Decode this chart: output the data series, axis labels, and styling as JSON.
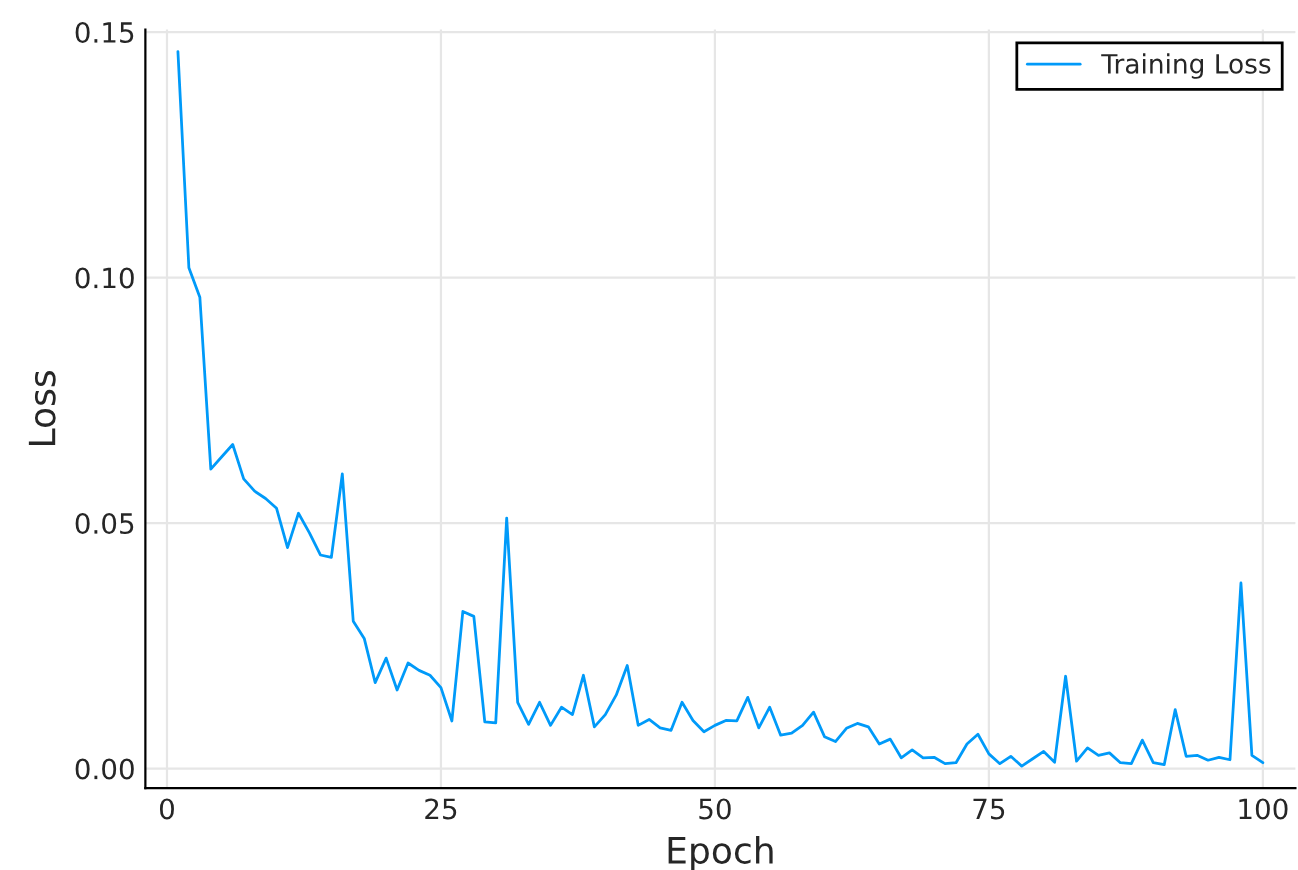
{
  "chart_data": {
    "type": "line",
    "xlabel": "Epoch",
    "ylabel": "Loss",
    "x": [
      1,
      2,
      3,
      4,
      5,
      6,
      7,
      8,
      9,
      10,
      11,
      12,
      13,
      14,
      15,
      16,
      17,
      18,
      19,
      20,
      21,
      22,
      23,
      24,
      25,
      26,
      27,
      28,
      29,
      30,
      31,
      32,
      33,
      34,
      35,
      36,
      37,
      38,
      39,
      40,
      41,
      42,
      43,
      44,
      45,
      46,
      47,
      48,
      49,
      50,
      51,
      52,
      53,
      54,
      55,
      56,
      57,
      58,
      59,
      60,
      61,
      62,
      63,
      64,
      65,
      66,
      67,
      68,
      69,
      70,
      71,
      72,
      73,
      74,
      75,
      76,
      77,
      78,
      79,
      80,
      81,
      82,
      83,
      84,
      85,
      86,
      87,
      88,
      89,
      90,
      91,
      92,
      93,
      94,
      95,
      96,
      97,
      98,
      99,
      100
    ],
    "series": [
      {
        "name": "Training Loss",
        "color": "#009af9",
        "values": [
          0.146,
          0.102,
          0.096,
          0.061,
          0.0635,
          0.066,
          0.059,
          0.0565,
          0.055,
          0.053,
          0.045,
          0.052,
          0.048,
          0.0435,
          0.043,
          0.06,
          0.03,
          0.0265,
          0.0175,
          0.0225,
          0.016,
          0.0215,
          0.02,
          0.019,
          0.0165,
          0.0097,
          0.032,
          0.031,
          0.0095,
          0.0093,
          0.051,
          0.0135,
          0.009,
          0.0135,
          0.0088,
          0.0125,
          0.011,
          0.019,
          0.0085,
          0.011,
          0.015,
          0.021,
          0.0088,
          0.01,
          0.0083,
          0.0078,
          0.0135,
          0.0098,
          0.0075,
          0.0088,
          0.0098,
          0.0097,
          0.0145,
          0.0083,
          0.0125,
          0.0068,
          0.0072,
          0.0088,
          0.0115,
          0.0065,
          0.0055,
          0.0082,
          0.0092,
          0.0085,
          0.005,
          0.006,
          0.0022,
          0.0038,
          0.0022,
          0.0023,
          0.001,
          0.0012,
          0.005,
          0.007,
          0.003,
          0.001,
          0.0025,
          0.0005,
          0.002,
          0.0035,
          0.0013,
          0.0188,
          0.0015,
          0.0042,
          0.0027,
          0.0032,
          0.0012,
          0.001,
          0.0058,
          0.0012,
          0.0008,
          0.012,
          0.0025,
          0.0027,
          0.0017,
          0.0023,
          0.0018,
          0.0378,
          0.0027,
          0.0012
        ]
      }
    ],
    "xlim": [
      -1.97,
      102.97
    ],
    "xticks": [
      0,
      25,
      50,
      75,
      100
    ],
    "ylim": [
      -0.004,
      0.1505
    ],
    "yticks": [
      {
        "value": 0,
        "label": "0.00"
      },
      {
        "value": 0.05,
        "label": "0.05"
      },
      {
        "value": 0.1,
        "label": "0.10"
      },
      {
        "value": 0.15,
        "label": "0.15"
      }
    ],
    "grid": true,
    "legend": "top right",
    "line_style": "solid",
    "marker": "none"
  }
}
